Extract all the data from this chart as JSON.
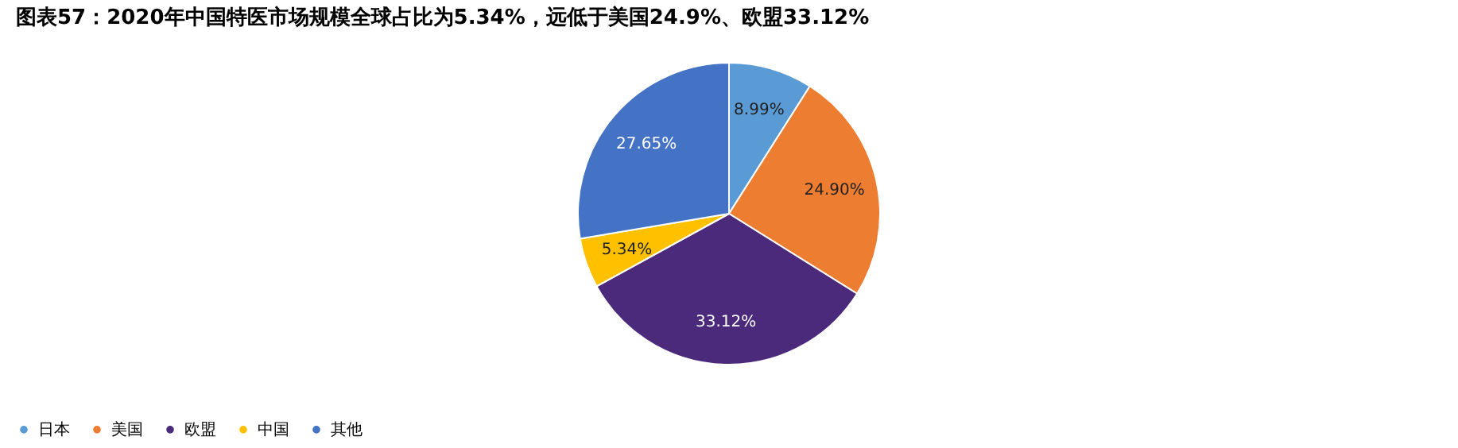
{
  "chart_data": {
    "type": "pie",
    "title": "图表57：2020年中国特医市场规模全球占比为5.34%，远低于美国24.9%、欧盟33.12%",
    "categories": [
      "日本",
      "美国",
      "欧盟",
      "中国",
      "其他"
    ],
    "values": [
      8.99,
      24.9,
      33.12,
      5.34,
      27.65
    ],
    "colors": [
      "#5b9bd5",
      "#ed7d31",
      "#4b2a7b",
      "#ffc000",
      "#4472c4"
    ],
    "value_labels": [
      "8.99%",
      "24.90%",
      "33.12%",
      "5.34%",
      "27.65%"
    ],
    "legend": "bottom"
  }
}
